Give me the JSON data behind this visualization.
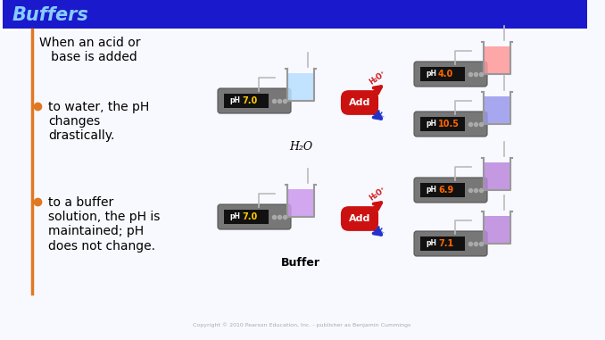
{
  "title": "Buffers",
  "header_bg": "#1a1acc",
  "header_text_color": "#88ccff",
  "border_color": "#e07820",
  "bg_color": "#f8f8ff",
  "intro_text": "When an acid or\n   base is added",
  "bullet1": "to water, the pH\nchanges\ndrastically.",
  "bullet2": "to a buffer\nsolution, the pH is\nmaintained; pH\ndoes not change.",
  "bullet_color": "#e07820",
  "text_color": "#000000",
  "water_label": "H₂O",
  "buffer_label": "Buffer",
  "ph_val_orange": "#ff6600",
  "ph_val_yellow": "#ffcc00",
  "beaker_water_start": "#b8e0ff",
  "beaker_acid": "#ff9999",
  "beaker_base": "#9999ee",
  "beaker_buffer_start": "#cc99ee",
  "beaker_buffer_acid": "#bb88dd",
  "beaker_buffer_base": "#bb88dd",
  "arrow_red": "#cc1111",
  "arrow_blue": "#2233cc",
  "meter_body": "#777777",
  "meter_display": "#111111",
  "meter_dots": "#aaaaaa",
  "wire_color": "#bbbbbb"
}
